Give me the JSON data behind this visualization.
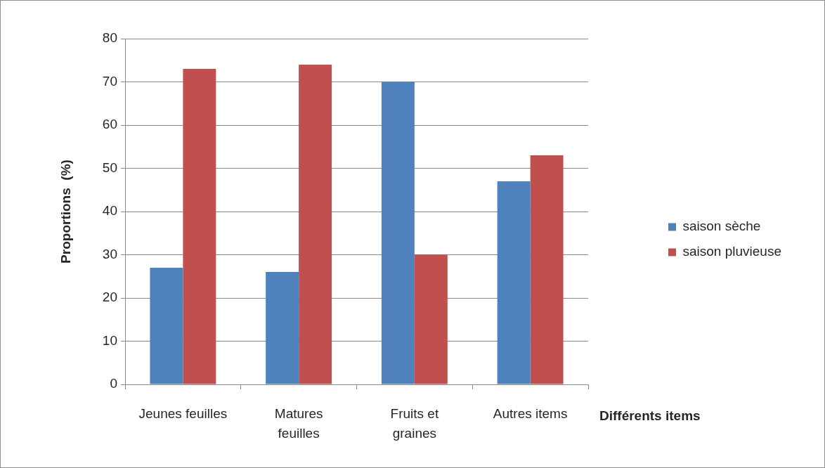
{
  "chart_data": {
    "type": "bar",
    "categories": [
      "Jeunes feuilles",
      "Matures feuilles",
      "Fruits et graines",
      "Autres items"
    ],
    "series": [
      {
        "name": "saison sèche",
        "color": "#4f81bd",
        "values": [
          27,
          26,
          70,
          47
        ]
      },
      {
        "name": "saison pluvieuse",
        "color": "#c0504d",
        "values": [
          73,
          74,
          30,
          53
        ]
      }
    ],
    "xlabel": "Différents items",
    "ylabel": "Proportions  (%)",
    "ylim": [
      0,
      80
    ],
    "yticks": [
      0,
      10,
      20,
      30,
      40,
      50,
      60,
      70,
      80
    ],
    "grid": "y",
    "legend": "right"
  }
}
